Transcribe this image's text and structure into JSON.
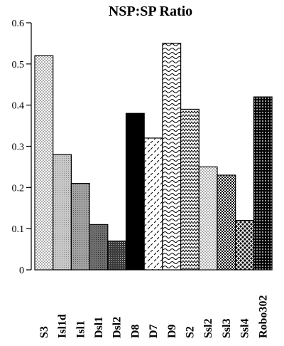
{
  "chart_data": {
    "type": "bar",
    "title": "NSP:SP  Ratio",
    "xlabel": "",
    "ylabel": "",
    "ylim": [
      0,
      0.6
    ],
    "yticks": [
      "0",
      "0.1",
      "0.2",
      "0.3",
      "0.4",
      "0.5",
      "0.6"
    ],
    "grid": false,
    "categories": [
      "S3",
      "Isl1d",
      "Isl1",
      "Dsl1",
      "Dsl2",
      "D8",
      "D7",
      "D9",
      "S2",
      "Ssl2",
      "Ssl3",
      "Ssl4",
      "Robo302"
    ],
    "values": [
      0.52,
      0.28,
      0.21,
      0.11,
      0.07,
      0.38,
      0.32,
      0.55,
      0.39,
      0.25,
      0.23,
      0.12,
      0.42
    ],
    "fills": [
      "dots-fine",
      "gray-light",
      "gray-medium",
      "gray-dark",
      "gray-darker",
      "solid-black",
      "dashes",
      "waves",
      "zigzag",
      "dots-fine",
      "checker",
      "crosshatch",
      "dots-grid"
    ]
  }
}
